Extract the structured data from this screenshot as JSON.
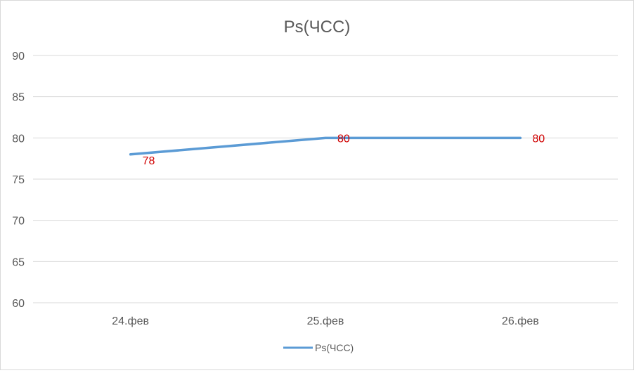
{
  "chart_data": {
    "type": "line",
    "title": "Ps(ЧСС)",
    "categories": [
      "24.фев",
      "25.фев",
      "26.фев"
    ],
    "series": [
      {
        "name": "Ps(ЧСС)",
        "values": [
          78,
          80,
          80
        ]
      }
    ],
    "data_labels": [
      "78",
      "80",
      "80"
    ],
    "ylim": [
      60,
      90
    ],
    "yticks": [
      60,
      65,
      70,
      75,
      80,
      85,
      90
    ],
    "grid": true,
    "legend_position": "bottom",
    "colors": {
      "series": "#5b9bd5",
      "data_label": "#d00000",
      "grid": "#d9d9d9",
      "text": "#595959"
    }
  }
}
